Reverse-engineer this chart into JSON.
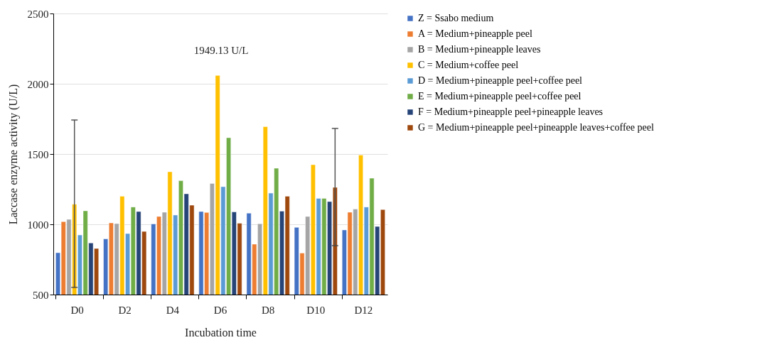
{
  "chart_data": {
    "type": "bar",
    "xlabel": "Incubation time",
    "ylabel": "Laccase enzyme activity (U/L)",
    "categories": [
      "D0",
      "D2",
      "D4",
      "D6",
      "D8",
      "D10",
      "D12"
    ],
    "series": [
      {
        "name": "Z = Ssabo medium",
        "color": "#4472c4",
        "values": [
          798,
          896,
          1003,
          1091,
          1079,
          978,
          960
        ]
      },
      {
        "name": "A = Medium+pineapple peel",
        "color": "#ed7d31",
        "values": [
          1019,
          1010,
          1056,
          1084,
          859,
          795,
          1086
        ]
      },
      {
        "name": "B = Medium+pineapple leaves",
        "color": "#a5a5a5",
        "values": [
          1035,
          1005,
          1086,
          1291,
          1004,
          1056,
          1108
        ]
      },
      {
        "name": "C = Medium+coffee peel",
        "color": "#ffc000",
        "values": [
          1143,
          1200,
          1374,
          2059,
          1695,
          1424,
          1493
        ],
        "errors": [
          [
            551,
            1742
          ],
          null,
          null,
          null,
          null,
          null,
          null
        ]
      },
      {
        "name": "D = Medium+pineapple peel+coffee peel",
        "color": "#5b9bd5",
        "values": [
          924,
          934,
          1066,
          1268,
          1222,
          1184,
          1123
        ]
      },
      {
        "name": "E = Medium+pineapple peel+coffee peel",
        "color": "#70ad47",
        "values": [
          1096,
          1123,
          1310,
          1616,
          1399,
          1184,
          1328
        ]
      },
      {
        "name": "F = Medium+pineapple peel+pineapple leaves",
        "color": "#264478",
        "values": [
          867,
          1091,
          1217,
          1088,
          1094,
          1162,
          985
        ]
      },
      {
        "name": "G = Medium+pineapple peel+pineapple leaves+coffee peel",
        "color": "#9e480e",
        "values": [
          828,
          949,
          1136,
          1007,
          1200,
          1263,
          1105
        ],
        "errors": [
          null,
          null,
          null,
          null,
          null,
          [
            848,
            1682
          ],
          null
        ]
      }
    ],
    "ylim": [
      500,
      2500
    ],
    "yticks": [
      500,
      1000,
      1500,
      2000,
      2500
    ],
    "grid": "y",
    "legend": "right",
    "annotations": [
      "1949.13 U/L"
    ]
  }
}
